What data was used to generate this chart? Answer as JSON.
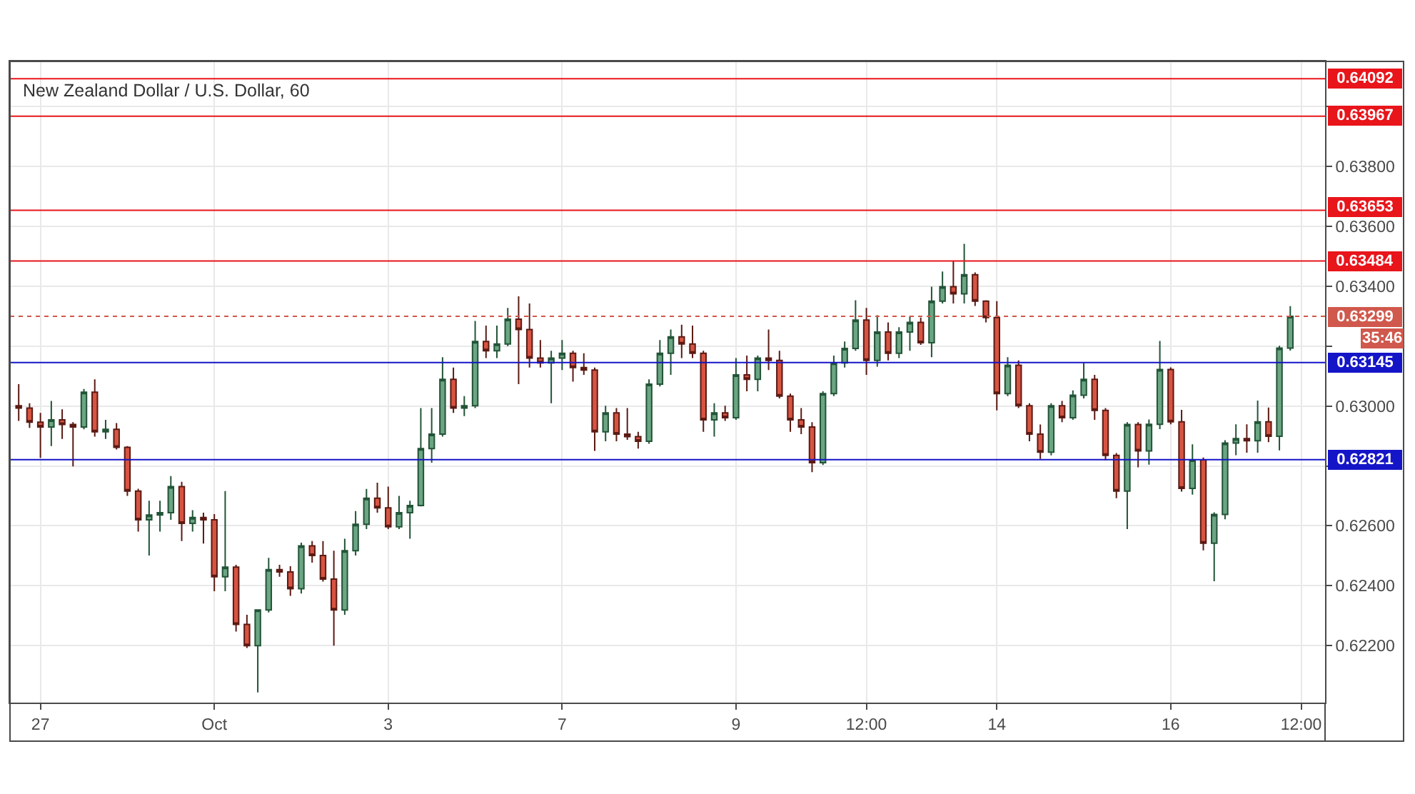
{
  "chart_data": {
    "type": "candlestick",
    "title": "New Zealand Dollar / U.S. Dollar, 60",
    "categories": [
      null,
      null,
      "27",
      null,
      null,
      null,
      null,
      null,
      null,
      null,
      null,
      null,
      null,
      null,
      null,
      null,
      null,
      null,
      "Oct",
      null,
      null,
      null,
      null,
      null,
      null,
      null,
      null,
      null,
      null,
      null,
      null,
      null,
      null,
      null,
      "3",
      null,
      null,
      null,
      null,
      null,
      null,
      null,
      null,
      null,
      null,
      null,
      null,
      null,
      null,
      null,
      "7",
      null,
      null,
      null,
      null,
      null,
      null,
      null,
      null,
      null,
      null,
      null,
      null,
      null,
      null,
      null,
      "9",
      null,
      null,
      null,
      null,
      null,
      null,
      null,
      null,
      null,
      null,
      null,
      "12:00",
      null,
      null,
      null,
      null,
      null,
      null,
      null,
      null,
      null,
      null,
      null,
      "14",
      null,
      null,
      null,
      null,
      null,
      null,
      null,
      null,
      null,
      null,
      null,
      null,
      null,
      null,
      null,
      "16",
      null,
      null,
      null,
      null,
      null,
      null,
      null,
      null,
      null,
      null,
      null,
      "12:00"
    ],
    "ohlc": [
      [
        0.63001,
        0.63073,
        0.6295,
        0.62993
      ],
      [
        0.62993,
        0.63009,
        0.62927,
        0.62946
      ],
      [
        0.62946,
        0.62977,
        0.62827,
        0.6293
      ],
      [
        0.6293,
        0.63017,
        0.62866,
        0.62954
      ],
      [
        0.62954,
        0.62989,
        0.6289,
        0.62938
      ],
      [
        0.62938,
        0.62946,
        0.62798,
        0.6293
      ],
      [
        0.6293,
        0.63057,
        0.62922,
        0.63046
      ],
      [
        0.63046,
        0.63089,
        0.62898,
        0.62914
      ],
      [
        0.62914,
        0.62954,
        0.6289,
        0.62922
      ],
      [
        0.62922,
        0.62943,
        0.62855,
        0.62862
      ],
      [
        0.62862,
        0.62866,
        0.627,
        0.62716
      ],
      [
        0.62716,
        0.62724,
        0.62581,
        0.6262
      ],
      [
        0.6262,
        0.62684,
        0.62501,
        0.62636
      ],
      [
        0.62636,
        0.62684,
        0.62581,
        0.62644
      ],
      [
        0.62644,
        0.62766,
        0.6262,
        0.62731
      ],
      [
        0.62731,
        0.62747,
        0.62549,
        0.62608
      ],
      [
        0.62608,
        0.62652,
        0.62581,
        0.62628
      ],
      [
        0.62628,
        0.62644,
        0.62541,
        0.6262
      ],
      [
        0.6262,
        0.62639,
        0.62382,
        0.6243
      ],
      [
        0.6243,
        0.62716,
        0.62382,
        0.62462
      ],
      [
        0.62462,
        0.6247,
        0.62247,
        0.62271
      ],
      [
        0.62271,
        0.62303,
        0.62192,
        0.622
      ],
      [
        0.622,
        0.62319,
        0.62044,
        0.62319
      ],
      [
        0.62319,
        0.62493,
        0.62311,
        0.62454
      ],
      [
        0.62454,
        0.6247,
        0.6243,
        0.62446
      ],
      [
        0.62446,
        0.62465,
        0.62366,
        0.6239
      ],
      [
        0.6239,
        0.62544,
        0.62374,
        0.62533
      ],
      [
        0.62533,
        0.62549,
        0.62477,
        0.62501
      ],
      [
        0.62501,
        0.62549,
        0.62414,
        0.62422
      ],
      [
        0.62422,
        0.62517,
        0.622,
        0.62319
      ],
      [
        0.62319,
        0.62557,
        0.62303,
        0.62517
      ],
      [
        0.62517,
        0.62649,
        0.62501,
        0.62605
      ],
      [
        0.62605,
        0.62723,
        0.62589,
        0.62692
      ],
      [
        0.62692,
        0.62744,
        0.62644,
        0.6266
      ],
      [
        0.6266,
        0.62731,
        0.62589,
        0.62597
      ],
      [
        0.62597,
        0.627,
        0.62589,
        0.62644
      ],
      [
        0.62644,
        0.62684,
        0.62557,
        0.62668
      ],
      [
        0.62668,
        0.62993,
        0.62665,
        0.62858
      ],
      [
        0.62858,
        0.62993,
        0.62811,
        0.62906
      ],
      [
        0.62906,
        0.63163,
        0.62898,
        0.63089
      ],
      [
        0.63089,
        0.63128,
        0.62977,
        0.62993
      ],
      [
        0.62993,
        0.63033,
        0.62966,
        0.63001
      ],
      [
        0.63001,
        0.63284,
        0.62993,
        0.63215
      ],
      [
        0.63215,
        0.63268,
        0.6316,
        0.63184
      ],
      [
        0.63184,
        0.63268,
        0.6316,
        0.63207
      ],
      [
        0.63207,
        0.63327,
        0.632,
        0.6329
      ],
      [
        0.6329,
        0.63366,
        0.63073,
        0.63255
      ],
      [
        0.63255,
        0.63342,
        0.63128,
        0.6316
      ],
      [
        0.6316,
        0.6322,
        0.63128,
        0.63144
      ],
      [
        0.63144,
        0.63184,
        0.63009,
        0.6316
      ],
      [
        0.6316,
        0.6322,
        0.6312,
        0.63176
      ],
      [
        0.63176,
        0.63184,
        0.63081,
        0.63128
      ],
      [
        0.63128,
        0.63176,
        0.63104,
        0.6312
      ],
      [
        0.6312,
        0.63128,
        0.6285,
        0.62914
      ],
      [
        0.62914,
        0.63001,
        0.62882,
        0.62977
      ],
      [
        0.62977,
        0.62993,
        0.62882,
        0.62906
      ],
      [
        0.62906,
        0.62993,
        0.62887,
        0.62898
      ],
      [
        0.62898,
        0.62914,
        0.62858,
        0.62882
      ],
      [
        0.62882,
        0.63089,
        0.62874,
        0.63073
      ],
      [
        0.63073,
        0.6322,
        0.63065,
        0.63176
      ],
      [
        0.63176,
        0.63255,
        0.63104,
        0.63231
      ],
      [
        0.63231,
        0.63271,
        0.6316,
        0.63207
      ],
      [
        0.63207,
        0.63268,
        0.6316,
        0.63176
      ],
      [
        0.63176,
        0.63184,
        0.62914,
        0.62954
      ],
      [
        0.62954,
        0.63009,
        0.62898,
        0.62977
      ],
      [
        0.62977,
        0.63001,
        0.6295,
        0.62961
      ],
      [
        0.62961,
        0.6316,
        0.62954,
        0.63104
      ],
      [
        0.63104,
        0.63168,
        0.63049,
        0.63089
      ],
      [
        0.63089,
        0.63168,
        0.63049,
        0.6316
      ],
      [
        0.6316,
        0.63255,
        0.6312,
        0.63152
      ],
      [
        0.63152,
        0.63184,
        0.63025,
        0.63033
      ],
      [
        0.63033,
        0.63041,
        0.62914,
        0.62954
      ],
      [
        0.62954,
        0.62993,
        0.62906,
        0.6293
      ],
      [
        0.6293,
        0.62946,
        0.62779,
        0.62811
      ],
      [
        0.62811,
        0.63049,
        0.62803,
        0.63041
      ],
      [
        0.63041,
        0.63168,
        0.63033,
        0.63144
      ],
      [
        0.63144,
        0.63215,
        0.63128,
        0.63192
      ],
      [
        0.63192,
        0.63353,
        0.63184,
        0.63287
      ],
      [
        0.63287,
        0.63327,
        0.63104,
        0.63152
      ],
      [
        0.63152,
        0.63303,
        0.63131,
        0.63247
      ],
      [
        0.63247,
        0.63279,
        0.63152,
        0.63176
      ],
      [
        0.63176,
        0.63263,
        0.6316,
        0.63247
      ],
      [
        0.63247,
        0.633,
        0.63184,
        0.63279
      ],
      [
        0.63279,
        0.63295,
        0.63204,
        0.63211
      ],
      [
        0.63211,
        0.63398,
        0.63163,
        0.6335
      ],
      [
        0.6335,
        0.63449,
        0.63342,
        0.63398
      ],
      [
        0.63398,
        0.63485,
        0.63342,
        0.63374
      ],
      [
        0.63374,
        0.63541,
        0.63342,
        0.63438
      ],
      [
        0.63438,
        0.63446,
        0.63334,
        0.6335
      ],
      [
        0.6335,
        0.63353,
        0.63279,
        0.63295
      ],
      [
        0.63295,
        0.6335,
        0.62985,
        0.63041
      ],
      [
        0.63041,
        0.63163,
        0.63033,
        0.63136
      ],
      [
        0.63136,
        0.63152,
        0.62993,
        0.63001
      ],
      [
        0.63001,
        0.63009,
        0.62882,
        0.62906
      ],
      [
        0.62906,
        0.62938,
        0.62823,
        0.62846
      ],
      [
        0.62846,
        0.63009,
        0.62835,
        0.63001
      ],
      [
        0.63001,
        0.63017,
        0.62946,
        0.62961
      ],
      [
        0.62961,
        0.63052,
        0.62954,
        0.63036
      ],
      [
        0.63036,
        0.63144,
        0.63025,
        0.63089
      ],
      [
        0.63089,
        0.63104,
        0.62954,
        0.62985
      ],
      [
        0.62985,
        0.62993,
        0.62819,
        0.62835
      ],
      [
        0.62835,
        0.62843,
        0.62692,
        0.62716
      ],
      [
        0.62716,
        0.62946,
        0.62589,
        0.62938
      ],
      [
        0.62938,
        0.62946,
        0.62795,
        0.6285
      ],
      [
        0.6285,
        0.62955,
        0.62804,
        0.62939
      ],
      [
        0.62939,
        0.63217,
        0.62923,
        0.63122
      ],
      [
        0.63122,
        0.63129,
        0.62939,
        0.62947
      ],
      [
        0.62947,
        0.62987,
        0.62714,
        0.62725
      ],
      [
        0.62725,
        0.62872,
        0.62704,
        0.6282
      ],
      [
        0.6282,
        0.62828,
        0.62518,
        0.62542
      ],
      [
        0.62542,
        0.62645,
        0.62415,
        0.62638
      ],
      [
        0.62638,
        0.62886,
        0.62622,
        0.62876
      ],
      [
        0.62876,
        0.62939,
        0.62836,
        0.62891
      ],
      [
        0.62891,
        0.62939,
        0.62844,
        0.62884
      ],
      [
        0.62884,
        0.63018,
        0.62844,
        0.62947
      ],
      [
        0.62947,
        0.62995,
        0.62879,
        0.62899
      ],
      [
        0.62899,
        0.63201,
        0.62852,
        0.63193
      ],
      [
        0.63193,
        0.63333,
        0.63185,
        0.63299
      ],
      null
    ],
    "ylim": [
      0.6201,
      0.6415
    ],
    "yticks": [
      {
        "value": 0.622,
        "label": "0.62200"
      },
      {
        "value": 0.624,
        "label": "0.62400"
      },
      {
        "value": 0.626,
        "label": "0.62600"
      },
      {
        "value": 0.628,
        "label": null
      },
      {
        "value": 0.63,
        "label": "0.63000"
      },
      {
        "value": 0.632,
        "label": null
      },
      {
        "value": 0.634,
        "label": "0.63400"
      },
      {
        "value": 0.636,
        "label": "0.63600"
      },
      {
        "value": 0.638,
        "label": "0.63800"
      },
      {
        "value": 0.64,
        "label": null
      }
    ],
    "grid": true,
    "ref_lines": [
      {
        "axis": "y",
        "value": 0.64092,
        "label": "0.64092",
        "color": "#e8151b"
      },
      {
        "axis": "y",
        "value": 0.63967,
        "label": "0.63967",
        "color": "#e8151b"
      },
      {
        "axis": "y",
        "value": 0.63653,
        "label": "0.63653",
        "color": "#e8151b"
      },
      {
        "axis": "y",
        "value": 0.63484,
        "label": "0.63484",
        "color": "#e8151b"
      },
      {
        "axis": "y",
        "value": 0.63299,
        "label": "0.63299",
        "color": "#d0584c",
        "line_style": "dotted"
      },
      {
        "axis": "y",
        "value": 0.63145,
        "label": "0.63145",
        "color": "#1515c8"
      },
      {
        "axis": "y",
        "value": 0.62821,
        "label": "0.62821",
        "color": "#1515c8"
      }
    ],
    "annotations": [
      "35:46"
    ]
  }
}
